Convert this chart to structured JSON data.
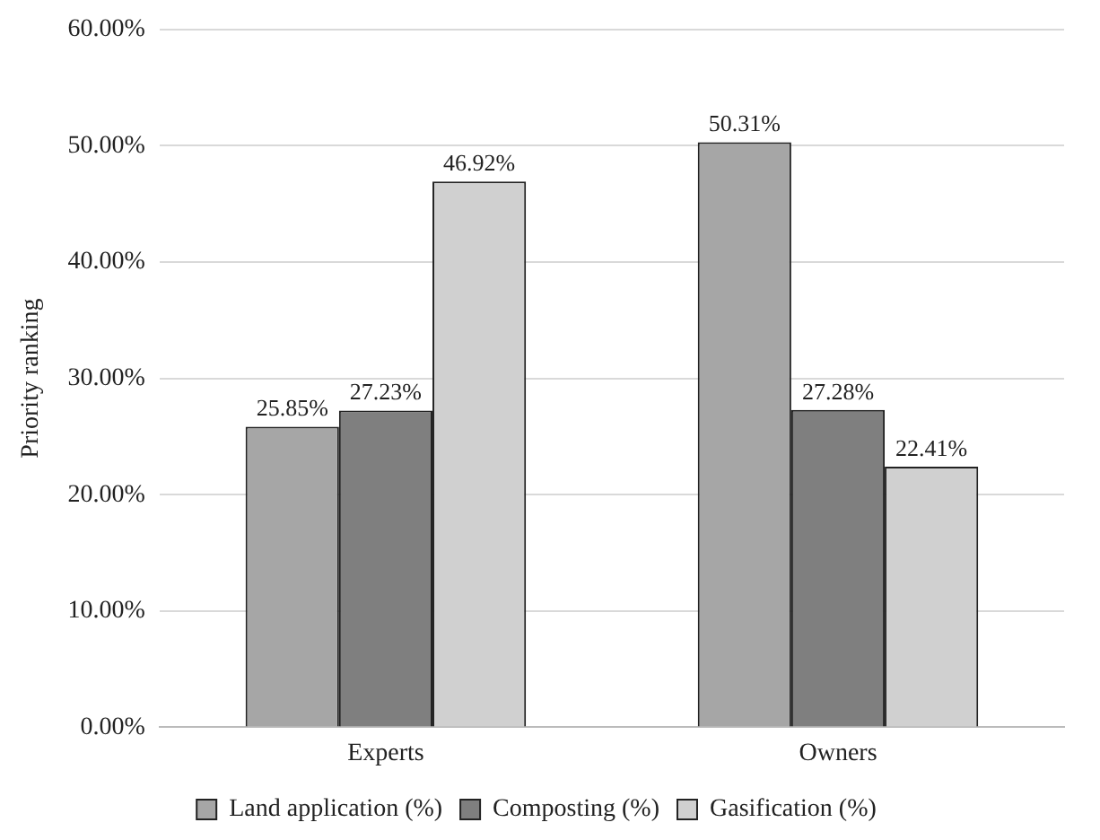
{
  "chart_data": {
    "type": "bar",
    "ylabel": "Priority ranking",
    "categories": [
      "Experts",
      "Owners"
    ],
    "series": [
      {
        "name": "Land application (%)",
        "color": "#a6a6a6",
        "values": [
          25.85,
          50.31
        ],
        "value_labels": [
          "25.85%",
          "50.31%"
        ]
      },
      {
        "name": "Composting (%)",
        "color": "#7f7f7f",
        "values": [
          27.23,
          27.28
        ],
        "value_labels": [
          "27.23%",
          "27.28%"
        ]
      },
      {
        "name": "Gasification (%)",
        "color": "#d0d0d0",
        "values": [
          46.92,
          22.41
        ],
        "value_labels": [
          "46.92%",
          "22.41%"
        ]
      }
    ],
    "ylim": [
      0,
      60
    ],
    "yticks": [
      {
        "value": 0,
        "label": "0.00%"
      },
      {
        "value": 10,
        "label": "10.00%"
      },
      {
        "value": 20,
        "label": "20.00%"
      },
      {
        "value": 30,
        "label": "30.00%"
      },
      {
        "value": 40,
        "label": "40.00%"
      },
      {
        "value": 50,
        "label": "50.00%"
      },
      {
        "value": 60,
        "label": "60.00%"
      }
    ],
    "grid": "y",
    "legend": "bottom"
  }
}
